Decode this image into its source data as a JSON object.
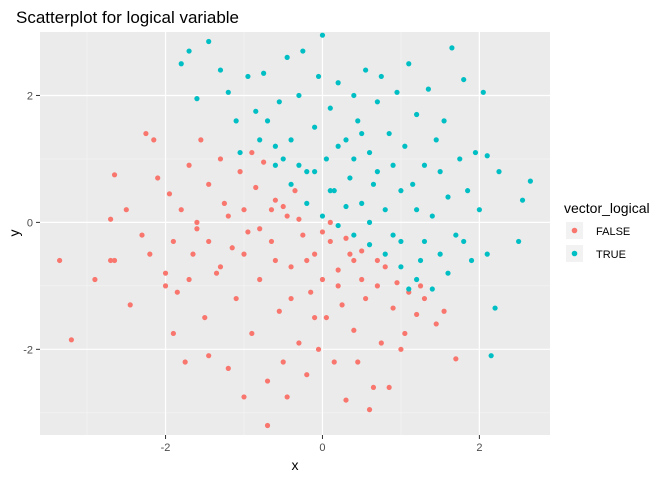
{
  "chart_data": {
    "type": "scatter",
    "title": "Scatterplot for logical variable",
    "xlabel": "x",
    "ylabel": "y",
    "xlim": [
      -3.6,
      2.9
    ],
    "ylim": [
      -3.35,
      3.0
    ],
    "x_ticks": [
      -2,
      0,
      2
    ],
    "x_tick_labels": [
      "-2",
      "0",
      "2"
    ],
    "y_ticks": [
      -2,
      0,
      2
    ],
    "y_tick_labels": [
      "-2",
      "0",
      "2"
    ],
    "grid": true,
    "legend": {
      "title": "vector_logical",
      "position": "right",
      "entries": [
        "FALSE",
        "TRUE"
      ]
    },
    "series": [
      {
        "name": "FALSE",
        "color": "#F8766D",
        "points": [
          [
            -3.35,
            -0.6
          ],
          [
            -3.2,
            -1.85
          ],
          [
            -2.9,
            -0.9
          ],
          [
            -2.65,
            -0.6
          ],
          [
            -2.65,
            0.75
          ],
          [
            -2.7,
            -0.6
          ],
          [
            -2.7,
            0.05
          ],
          [
            -2.45,
            -1.3
          ],
          [
            -2.5,
            0.2
          ],
          [
            -2.3,
            -0.2
          ],
          [
            -2.25,
            1.4
          ],
          [
            -2.15,
            1.3
          ],
          [
            -2.2,
            -0.5
          ],
          [
            -2.1,
            0.7
          ],
          [
            -2.0,
            -1.0
          ],
          [
            -1.9,
            -1.75
          ],
          [
            -1.95,
            0.45
          ],
          [
            -1.85,
            -1.1
          ],
          [
            -1.8,
            0.2
          ],
          [
            -1.7,
            0.9
          ],
          [
            -1.65,
            -0.5
          ],
          [
            -1.75,
            -2.2
          ],
          [
            -1.6,
            -0.1
          ],
          [
            -1.55,
            1.3
          ],
          [
            -1.5,
            -1.5
          ],
          [
            -1.45,
            0.6
          ],
          [
            -1.45,
            -2.1
          ],
          [
            -1.35,
            -0.8
          ],
          [
            -1.3,
            1.0
          ],
          [
            -1.25,
            0.3
          ],
          [
            -1.2,
            -2.3
          ],
          [
            -1.15,
            -0.4
          ],
          [
            -1.1,
            -1.2
          ],
          [
            -1.05,
            0.8
          ],
          [
            -1.0,
            -2.75
          ],
          [
            -0.95,
            -0.15
          ],
          [
            -0.9,
            -1.75
          ],
          [
            -0.85,
            0.55
          ],
          [
            -0.8,
            -0.9
          ],
          [
            -0.75,
            0.95
          ],
          [
            -0.7,
            -3.2
          ],
          [
            -0.7,
            -2.5
          ],
          [
            -0.65,
            -0.3
          ],
          [
            -0.6,
            0.35
          ],
          [
            -0.55,
            -1.4
          ],
          [
            -0.5,
            -2.2
          ],
          [
            -0.45,
            0.1
          ],
          [
            -0.45,
            -2.75
          ],
          [
            -0.4,
            -0.7
          ],
          [
            -0.35,
            0.5
          ],
          [
            -0.3,
            -1.9
          ],
          [
            -0.25,
            -0.2
          ],
          [
            -0.2,
            -2.4
          ],
          [
            -0.15,
            -1.1
          ],
          [
            -0.1,
            -0.5
          ],
          [
            -0.05,
            -2.0
          ],
          [
            0.0,
            -0.9
          ],
          [
            0.05,
            -1.5
          ],
          [
            0.1,
            -0.3
          ],
          [
            0.15,
            -2.2
          ],
          [
            0.2,
            -0.75
          ],
          [
            0.25,
            -1.3
          ],
          [
            0.3,
            -2.8
          ],
          [
            0.35,
            -0.5
          ],
          [
            0.4,
            -1.7
          ],
          [
            0.45,
            -2.2
          ],
          [
            0.5,
            -0.9
          ],
          [
            0.55,
            -1.2
          ],
          [
            0.6,
            -2.95
          ],
          [
            0.65,
            -2.6
          ],
          [
            0.7,
            -1.0
          ],
          [
            0.75,
            -1.9
          ],
          [
            0.8,
            -0.7
          ],
          [
            0.85,
            -2.6
          ],
          [
            0.9,
            -1.35
          ],
          [
            0.95,
            -0.95
          ],
          [
            1.05,
            -1.75
          ],
          [
            1.1,
            -1.1
          ],
          [
            1.2,
            -1.45
          ],
          [
            1.3,
            -1.2
          ],
          [
            1.45,
            -1.6
          ],
          [
            1.55,
            -1.4
          ],
          [
            1.7,
            -2.15
          ],
          [
            1.0,
            -2.0
          ],
          [
            1.25,
            -1.0
          ],
          [
            -0.9,
            1.1
          ],
          [
            -1.0,
            0.2
          ],
          [
            -0.5,
            0.25
          ],
          [
            -0.3,
            0.05
          ],
          [
            0.0,
            -0.15
          ],
          [
            0.1,
            0.0
          ],
          [
            0.3,
            -0.25
          ],
          [
            0.5,
            -0.45
          ],
          [
            0.7,
            -0.6
          ],
          [
            -0.6,
            -0.6
          ],
          [
            -1.6,
            0.0
          ],
          [
            -1.9,
            -0.3
          ],
          [
            -2.0,
            -0.8
          ],
          [
            -1.7,
            -0.9
          ],
          [
            -1.45,
            -0.3
          ],
          [
            -1.3,
            -0.7
          ],
          [
            -1.2,
            0.1
          ],
          [
            -1.0,
            -0.5
          ],
          [
            -0.8,
            -0.1
          ],
          [
            -0.65,
            0.2
          ],
          [
            -0.2,
            -0.6
          ],
          [
            0.2,
            -1.0
          ],
          [
            0.4,
            -0.6
          ],
          [
            -0.1,
            -1.5
          ],
          [
            -0.4,
            -1.2
          ]
        ]
      },
      {
        "name": "TRUE",
        "color": "#00BFC4",
        "points": [
          [
            -1.8,
            2.5
          ],
          [
            -1.7,
            2.7
          ],
          [
            -1.45,
            2.85
          ],
          [
            -1.3,
            2.4
          ],
          [
            -1.6,
            1.95
          ],
          [
            -1.2,
            2.05
          ],
          [
            -1.1,
            1.6
          ],
          [
            -1.05,
            1.1
          ],
          [
            -0.95,
            2.3
          ],
          [
            -0.85,
            1.75
          ],
          [
            -0.75,
            2.35
          ],
          [
            -0.7,
            1.6
          ],
          [
            -0.6,
            1.2
          ],
          [
            -0.55,
            1.9
          ],
          [
            -0.45,
            2.6
          ],
          [
            -0.4,
            1.3
          ],
          [
            -0.3,
            2.0
          ],
          [
            -0.25,
            2.7
          ],
          [
            -0.2,
            0.8
          ],
          [
            -0.1,
            1.5
          ],
          [
            -0.05,
            2.3
          ],
          [
            0.0,
            2.95
          ],
          [
            0.05,
            1.0
          ],
          [
            0.1,
            1.8
          ],
          [
            0.15,
            0.5
          ],
          [
            0.2,
            2.2
          ],
          [
            0.3,
            1.3
          ],
          [
            0.35,
            0.7
          ],
          [
            0.4,
            2.0
          ],
          [
            0.45,
            1.6
          ],
          [
            0.5,
            0.3
          ],
          [
            0.55,
            2.4
          ],
          [
            0.6,
            1.1
          ],
          [
            0.65,
            0.6
          ],
          [
            0.7,
            1.9
          ],
          [
            0.75,
            2.3
          ],
          [
            0.8,
            0.2
          ],
          [
            0.85,
            1.4
          ],
          [
            0.9,
            0.9
          ],
          [
            0.95,
            2.05
          ],
          [
            1.0,
            -0.3
          ],
          [
            1.05,
            1.2
          ],
          [
            1.1,
            2.5
          ],
          [
            1.15,
            0.6
          ],
          [
            1.2,
            1.7
          ],
          [
            1.25,
            -0.6
          ],
          [
            1.3,
            0.9
          ],
          [
            1.35,
            2.1
          ],
          [
            1.4,
            0.1
          ],
          [
            1.45,
            1.3
          ],
          [
            1.5,
            -0.5
          ],
          [
            1.55,
            1.6
          ],
          [
            1.6,
            0.4
          ],
          [
            1.65,
            2.75
          ],
          [
            1.7,
            -0.2
          ],
          [
            1.75,
            1.0
          ],
          [
            1.8,
            2.25
          ],
          [
            1.85,
            0.5
          ],
          [
            1.9,
            -0.6
          ],
          [
            1.95,
            1.1
          ],
          [
            2.0,
            0.2
          ],
          [
            2.05,
            2.05
          ],
          [
            2.1,
            -0.5
          ],
          [
            2.15,
            -2.1
          ],
          [
            2.2,
            -1.35
          ],
          [
            2.25,
            0.8
          ],
          [
            2.5,
            -0.3
          ],
          [
            2.55,
            0.35
          ],
          [
            2.65,
            0.65
          ],
          [
            2.1,
            1.05
          ],
          [
            -0.6,
            0.9
          ],
          [
            -0.4,
            0.6
          ],
          [
            -0.2,
            0.3
          ],
          [
            0.0,
            0.1
          ],
          [
            0.2,
            -0.05
          ],
          [
            0.4,
            -0.2
          ],
          [
            0.6,
            -0.35
          ],
          [
            0.8,
            -0.5
          ],
          [
            1.0,
            -0.7
          ],
          [
            1.2,
            -0.9
          ],
          [
            1.4,
            -1.05
          ],
          [
            1.1,
            -1.05
          ],
          [
            -0.5,
            1.0
          ],
          [
            -0.3,
            0.9
          ],
          [
            0.1,
            0.5
          ],
          [
            0.3,
            0.25
          ],
          [
            0.6,
            0.0
          ],
          [
            0.9,
            -0.2
          ],
          [
            1.3,
            -0.3
          ],
          [
            1.6,
            -0.8
          ],
          [
            1.8,
            -0.3
          ],
          [
            0.5,
            1.4
          ],
          [
            0.2,
            1.2
          ],
          [
            -0.1,
            0.8
          ],
          [
            1.0,
            0.5
          ],
          [
            1.2,
            0.2
          ],
          [
            0.7,
            0.8
          ],
          [
            0.4,
            1.0
          ],
          [
            1.5,
            0.8
          ],
          [
            -0.8,
            1.3
          ]
        ]
      }
    ]
  }
}
